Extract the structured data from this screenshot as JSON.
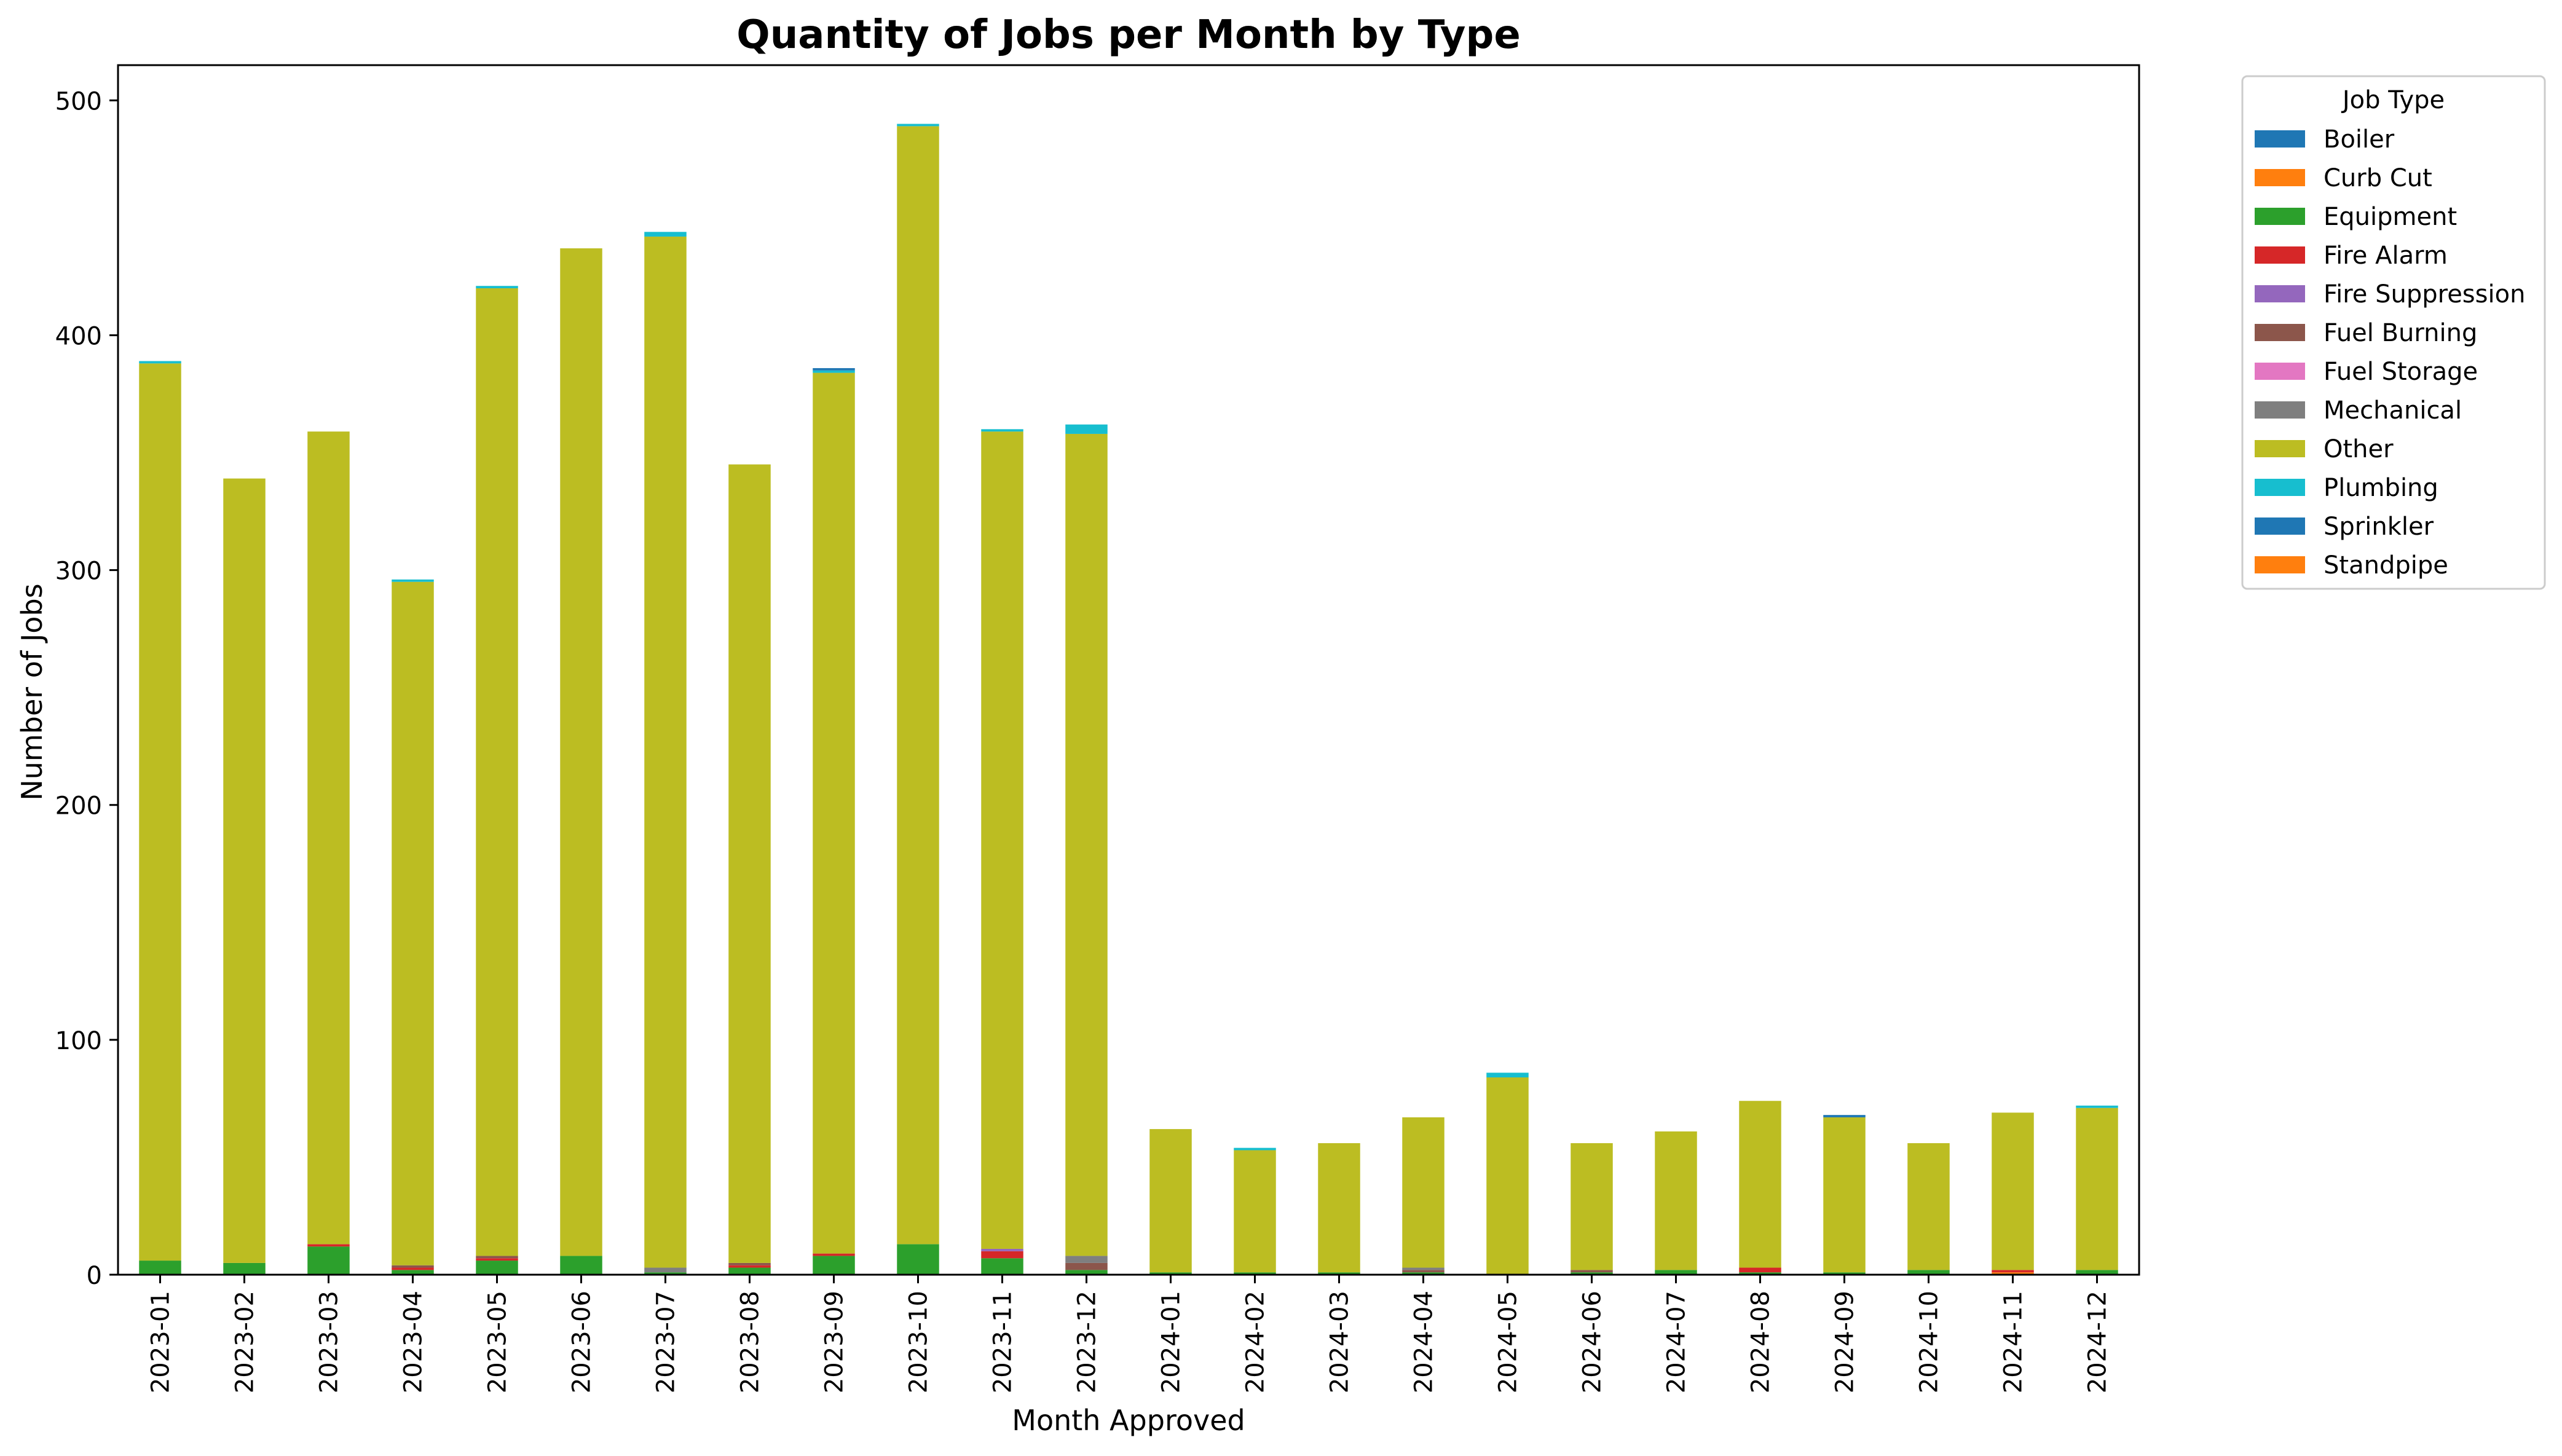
{
  "chart_data": {
    "type": "bar",
    "stacked": true,
    "title": "Quantity of Jobs per Month by Type",
    "xlabel": "Month Approved",
    "ylabel": "Number of Jobs",
    "ylim": [
      0,
      515
    ],
    "yticks": [
      0,
      100,
      200,
      300,
      400,
      500
    ],
    "grid": false,
    "legend": {
      "title": "Job Type",
      "placement": "outside-top-right"
    },
    "categories": [
      "2023-01",
      "2023-02",
      "2023-03",
      "2023-04",
      "2023-05",
      "2023-06",
      "2023-07",
      "2023-08",
      "2023-09",
      "2023-10",
      "2023-11",
      "2023-12",
      "2024-01",
      "2024-02",
      "2024-03",
      "2024-04",
      "2024-05",
      "2024-06",
      "2024-07",
      "2024-08",
      "2024-09",
      "2024-10",
      "2024-11",
      "2024-12"
    ],
    "series": [
      {
        "name": "Boiler",
        "color": "#1f77b4",
        "values": [
          0,
          0,
          0,
          0,
          0,
          0,
          0,
          0,
          0,
          0,
          0,
          0,
          0,
          0,
          0,
          0,
          0,
          0,
          0,
          0,
          0,
          0,
          0,
          0
        ]
      },
      {
        "name": "Curb Cut",
        "color": "#ff7f0e",
        "values": [
          0,
          0,
          0,
          0,
          0,
          0,
          0,
          0,
          0,
          0,
          0,
          0,
          0,
          0,
          0,
          0,
          0,
          0,
          0,
          0,
          0,
          0,
          1,
          0
        ]
      },
      {
        "name": "Equipment",
        "color": "#2ca02c",
        "values": [
          6,
          5,
          12,
          2,
          6,
          8,
          1,
          3,
          8,
          13,
          7,
          2,
          1,
          1,
          1,
          1,
          0,
          1,
          2,
          1,
          1,
          2,
          0,
          2
        ]
      },
      {
        "name": "Fire Alarm",
        "color": "#d62728",
        "values": [
          0,
          0,
          1,
          1,
          1,
          0,
          0,
          1,
          1,
          0,
          3,
          0,
          0,
          0,
          0,
          0,
          0,
          0,
          0,
          2,
          0,
          0,
          1,
          0
        ]
      },
      {
        "name": "Fire Suppression",
        "color": "#9467bd",
        "values": [
          0,
          0,
          0,
          0,
          0,
          0,
          0,
          0,
          0,
          0,
          1,
          0,
          0,
          0,
          0,
          0,
          0,
          0,
          0,
          0,
          0,
          0,
          0,
          0
        ]
      },
      {
        "name": "Fuel Burning",
        "color": "#8c564b",
        "values": [
          0,
          0,
          0,
          1,
          1,
          0,
          0,
          1,
          0,
          0,
          0,
          3,
          0,
          0,
          0,
          1,
          0,
          1,
          0,
          0,
          0,
          0,
          0,
          0
        ]
      },
      {
        "name": "Fuel Storage",
        "color": "#e377c2",
        "values": [
          0,
          0,
          0,
          0,
          0,
          0,
          0,
          0,
          0,
          0,
          0,
          0,
          0,
          0,
          0,
          0,
          0,
          0,
          0,
          0,
          0,
          0,
          0,
          0
        ]
      },
      {
        "name": "Mechanical",
        "color": "#7f7f7f",
        "values": [
          0,
          0,
          0,
          0,
          0,
          0,
          2,
          0,
          0,
          0,
          0,
          3,
          0,
          0,
          0,
          1,
          0,
          0,
          0,
          0,
          0,
          0,
          0,
          0
        ]
      },
      {
        "name": "Other",
        "color": "#bcbd22",
        "values": [
          382,
          334,
          346,
          291,
          412,
          429,
          439,
          340,
          375,
          476,
          348,
          350,
          61,
          52,
          55,
          64,
          84,
          54,
          59,
          71,
          66,
          54,
          67,
          69
        ]
      },
      {
        "name": "Plumbing",
        "color": "#17becf",
        "values": [
          1,
          0,
          0,
          1,
          1,
          0,
          2,
          0,
          1,
          1,
          1,
          4,
          0,
          1,
          0,
          0,
          2,
          0,
          0,
          0,
          0,
          0,
          0,
          1
        ]
      },
      {
        "name": "Sprinkler",
        "color": "#1f77b4",
        "values": [
          0,
          0,
          0,
          0,
          0,
          0,
          0,
          0,
          1,
          0,
          0,
          0,
          0,
          0,
          0,
          0,
          0,
          0,
          0,
          0,
          1,
          0,
          0,
          0
        ]
      },
      {
        "name": "Standpipe",
        "color": "#ff7f0e",
        "values": [
          0,
          0,
          0,
          0,
          0,
          0,
          0,
          0,
          0,
          0,
          0,
          0,
          0,
          0,
          0,
          0,
          0,
          0,
          0,
          0,
          0,
          0,
          0,
          0
        ]
      }
    ]
  }
}
